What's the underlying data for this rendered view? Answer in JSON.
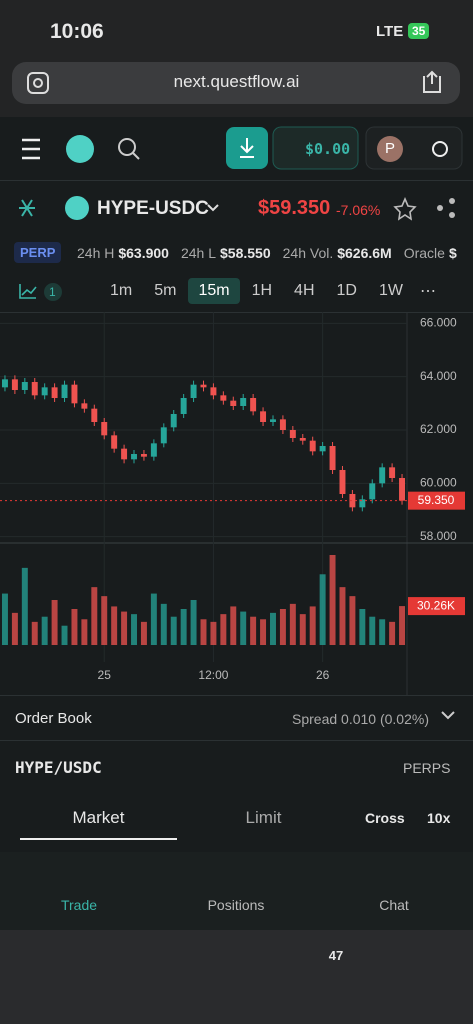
{
  "status": {
    "time": "10:06",
    "network": "LTE",
    "battery": "35"
  },
  "browser": {
    "url": "next.questflow.ai",
    "tab_count": "47"
  },
  "header": {
    "balance": "$0.00",
    "avatar": "P"
  },
  "market": {
    "pair": "HYPE-USDC",
    "price": "$59.350",
    "change": "-7.06%"
  },
  "stats": {
    "badge": "PERP",
    "items": [
      {
        "label": "24h H",
        "value": "$63.900"
      },
      {
        "label": "24h L",
        "value": "$58.550"
      },
      {
        "label": "24h Vol.",
        "value": "$626.6M"
      },
      {
        "label": "Oracle",
        "value": "$"
      }
    ]
  },
  "toolbar": {
    "indicator_count": "1",
    "intervals": [
      "1m",
      "5m",
      "15m",
      "1H",
      "4H",
      "1D",
      "1W"
    ]
  },
  "chart_data": {
    "type": "candlestick",
    "categories": [
      null,
      null,
      null,
      null,
      null,
      null,
      null,
      null,
      null,
      null,
      "25",
      null,
      null,
      null,
      null,
      null,
      null,
      null,
      null,
      null,
      null,
      "12:00",
      null,
      null,
      null,
      null,
      null,
      null,
      null,
      null,
      null,
      null,
      "26",
      null,
      null,
      null,
      null,
      null,
      null,
      null,
      null
    ],
    "open": [
      63.6,
      63.9,
      63.5,
      63.8,
      63.3,
      63.6,
      63.2,
      63.7,
      63.0,
      62.8,
      62.3,
      61.8,
      61.3,
      60.9,
      61.1,
      61.0,
      61.5,
      62.1,
      62.6,
      63.2,
      63.7,
      63.6,
      63.3,
      63.1,
      62.9,
      63.2,
      62.7,
      62.3,
      62.4,
      62.0,
      61.7,
      61.6,
      61.2,
      61.4,
      60.5,
      59.6,
      59.1,
      59.4,
      60.0,
      60.6,
      60.2
    ],
    "close": [
      63.9,
      63.5,
      63.8,
      63.3,
      63.6,
      63.2,
      63.7,
      63.0,
      62.8,
      62.3,
      61.8,
      61.3,
      60.9,
      61.1,
      61.0,
      61.5,
      62.1,
      62.6,
      63.2,
      63.7,
      63.6,
      63.3,
      63.1,
      62.9,
      63.2,
      62.7,
      62.3,
      62.4,
      62.0,
      61.7,
      61.6,
      61.2,
      61.4,
      60.5,
      59.6,
      59.1,
      59.4,
      60.0,
      60.6,
      60.2,
      59.35
    ],
    "up_color": "#26a69a",
    "down_color": "#ef5350",
    "ylim": [
      57.8,
      66.2
    ],
    "yticks": [
      {
        "value": 58,
        "label": "58.000"
      },
      {
        "value": 60,
        "label": "60.000"
      },
      {
        "value": 62,
        "label": "62.000"
      },
      {
        "value": 64,
        "label": "64.000"
      },
      {
        "value": 66,
        "label": "66.000"
      }
    ],
    "current_price": {
      "value": 59.35,
      "label": "59.350"
    },
    "volume": {
      "values": [
        40,
        25,
        60,
        18,
        22,
        35,
        15,
        28,
        20,
        45,
        38,
        30,
        26,
        24,
        18,
        40,
        32,
        22,
        28,
        35,
        20,
        18,
        24,
        30,
        26,
        22,
        20,
        25,
        28,
        32,
        24,
        30,
        55,
        70,
        45,
        38,
        28,
        22,
        20,
        18,
        30.26
      ],
      "last_label": "30.26K"
    }
  },
  "order_book": {
    "title": "Order Book",
    "spread": "Spread 0.010 (0.02%)"
  },
  "trade": {
    "pair": "HYPE/USDC",
    "kind": "PERPS",
    "tabs": [
      "Market",
      "Limit"
    ],
    "margin": "Cross",
    "leverage": "10x"
  },
  "nav": [
    "Trade",
    "Positions",
    "Chat"
  ]
}
